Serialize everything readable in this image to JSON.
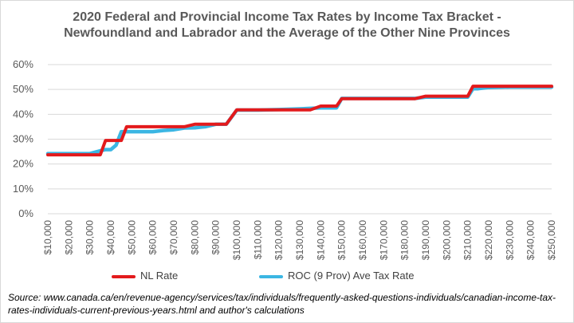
{
  "chart_data": {
    "type": "line",
    "title_line1": "2020 Federal and Provincial Income Tax Rates by Income Tax Bracket -",
    "title_line2": "Newfoundland and Labrador and the Average of the Other Nine Provinces",
    "ylim": [
      0,
      60
    ],
    "y_ticks": [
      "0%",
      "10%",
      "20%",
      "30%",
      "40%",
      "50%",
      "60%"
    ],
    "x_min": 10000,
    "x_max": 250000,
    "x_ticks": [
      "$10,000",
      "$20,000",
      "$30,000",
      "$40,000",
      "$50,000",
      "$60,000",
      "$70,000",
      "$80,000",
      "$90,000",
      "$100,000",
      "$110,000",
      "$120,000",
      "$130,000",
      "$140,000",
      "$150,000",
      "$160,000",
      "$170,000",
      "$180,000",
      "$190,000",
      "$200,000",
      "$210,000",
      "$220,000",
      "$230,000",
      "$240,000",
      "$250,000"
    ],
    "grid": true,
    "legend_position": "bottom",
    "series": [
      {
        "name": "NL Rate",
        "color": "#e31a1c",
        "x": [
          10000,
          20000,
          30000,
          35000,
          37500,
          42500,
          45000,
          47500,
          50000,
          60000,
          70000,
          75000,
          80000,
          90000,
          95000,
          100000,
          110000,
          120000,
          130000,
          135000,
          140000,
          145000,
          147500,
          150000,
          160000,
          170000,
          180000,
          185000,
          190000,
          200000,
          210000,
          212500,
          215000,
          220000,
          230000,
          240000,
          250000
        ],
        "y": [
          23.7,
          23.7,
          23.7,
          23.7,
          29.5,
          29.5,
          29.5,
          35.0,
          35.0,
          35.0,
          35.0,
          35.0,
          36.0,
          36.0,
          36.0,
          41.8,
          41.8,
          41.8,
          41.8,
          41.8,
          43.3,
          43.3,
          43.3,
          46.3,
          46.3,
          46.3,
          46.3,
          46.3,
          47.3,
          47.3,
          47.3,
          51.3,
          51.3,
          51.3,
          51.3,
          51.3,
          51.3
        ]
      },
      {
        "name": "ROC (9 Prov) Ave Tax Rate",
        "color": "#3bb6e3",
        "x": [
          10000,
          20000,
          30000,
          35000,
          37500,
          40000,
          42500,
          45000,
          47500,
          50000,
          60000,
          65000,
          70000,
          75000,
          80000,
          85000,
          90000,
          95000,
          100000,
          110000,
          120000,
          130000,
          140000,
          145000,
          147500,
          150000,
          160000,
          170000,
          180000,
          185000,
          190000,
          200000,
          210000,
          212500,
          215000,
          220000,
          230000,
          240000,
          250000
        ],
        "y": [
          24.2,
          24.2,
          24.2,
          25.3,
          25.8,
          25.8,
          27.6,
          33.0,
          33.0,
          33.0,
          33.0,
          33.5,
          33.8,
          34.5,
          34.6,
          35.0,
          36.0,
          36.0,
          41.7,
          41.7,
          41.9,
          42.2,
          42.6,
          42.6,
          42.6,
          46.4,
          46.4,
          46.4,
          46.4,
          46.4,
          46.9,
          46.9,
          46.9,
          50.3,
          50.3,
          50.8,
          51.0,
          51.0,
          51.0
        ]
      }
    ]
  },
  "source": "Source: www.canada.ca/en/revenue-agency/services/tax/individuals/frequently-asked-questions-individuals/canadian-income-tax-rates-individuals-current-previous-years.html and author's calculations"
}
